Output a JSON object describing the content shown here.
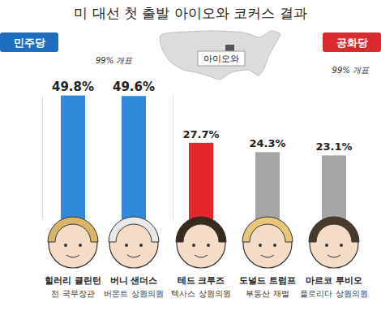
{
  "title": "미 대선 첫 출발 아이오와 코커스 결과",
  "map_label": "아이오와",
  "chart_data": [
    {
      "type": "bar",
      "title": "민주당",
      "subtitle": "99% 개표",
      "categories": [
        "힐러리 클린턴",
        "버니 샌더스"
      ],
      "descriptions": [
        "전 국무장관",
        "버몬트 상원의원"
      ],
      "values": [
        49.8,
        49.6
      ],
      "value_labels": [
        "49.8%",
        "49.6%"
      ],
      "colors": [
        "#2e8ad8",
        "#2e8ad8"
      ],
      "ylim": [
        0,
        50
      ],
      "yticks": [],
      "data_labels": true,
      "tick_labels": "x"
    },
    {
      "type": "bar",
      "title": "공화당",
      "subtitle": "99% 개표",
      "categories": [
        "테드 크루즈",
        "도널드 트럼프",
        "마르코 루비오"
      ],
      "descriptions": [
        "텍사스 상원의원",
        "부동산 재벌",
        "플로리다 상원의원"
      ],
      "values": [
        27.7,
        24.3,
        23.1
      ],
      "value_labels": [
        "27.7%",
        "24.3%",
        "23.1%"
      ],
      "colors": [
        "#e5262a",
        "#a6a6a6",
        "#a6a6a6"
      ],
      "ylim": [
        0,
        45
      ],
      "yticks": [],
      "data_labels": true,
      "tick_labels": "x"
    }
  ]
}
